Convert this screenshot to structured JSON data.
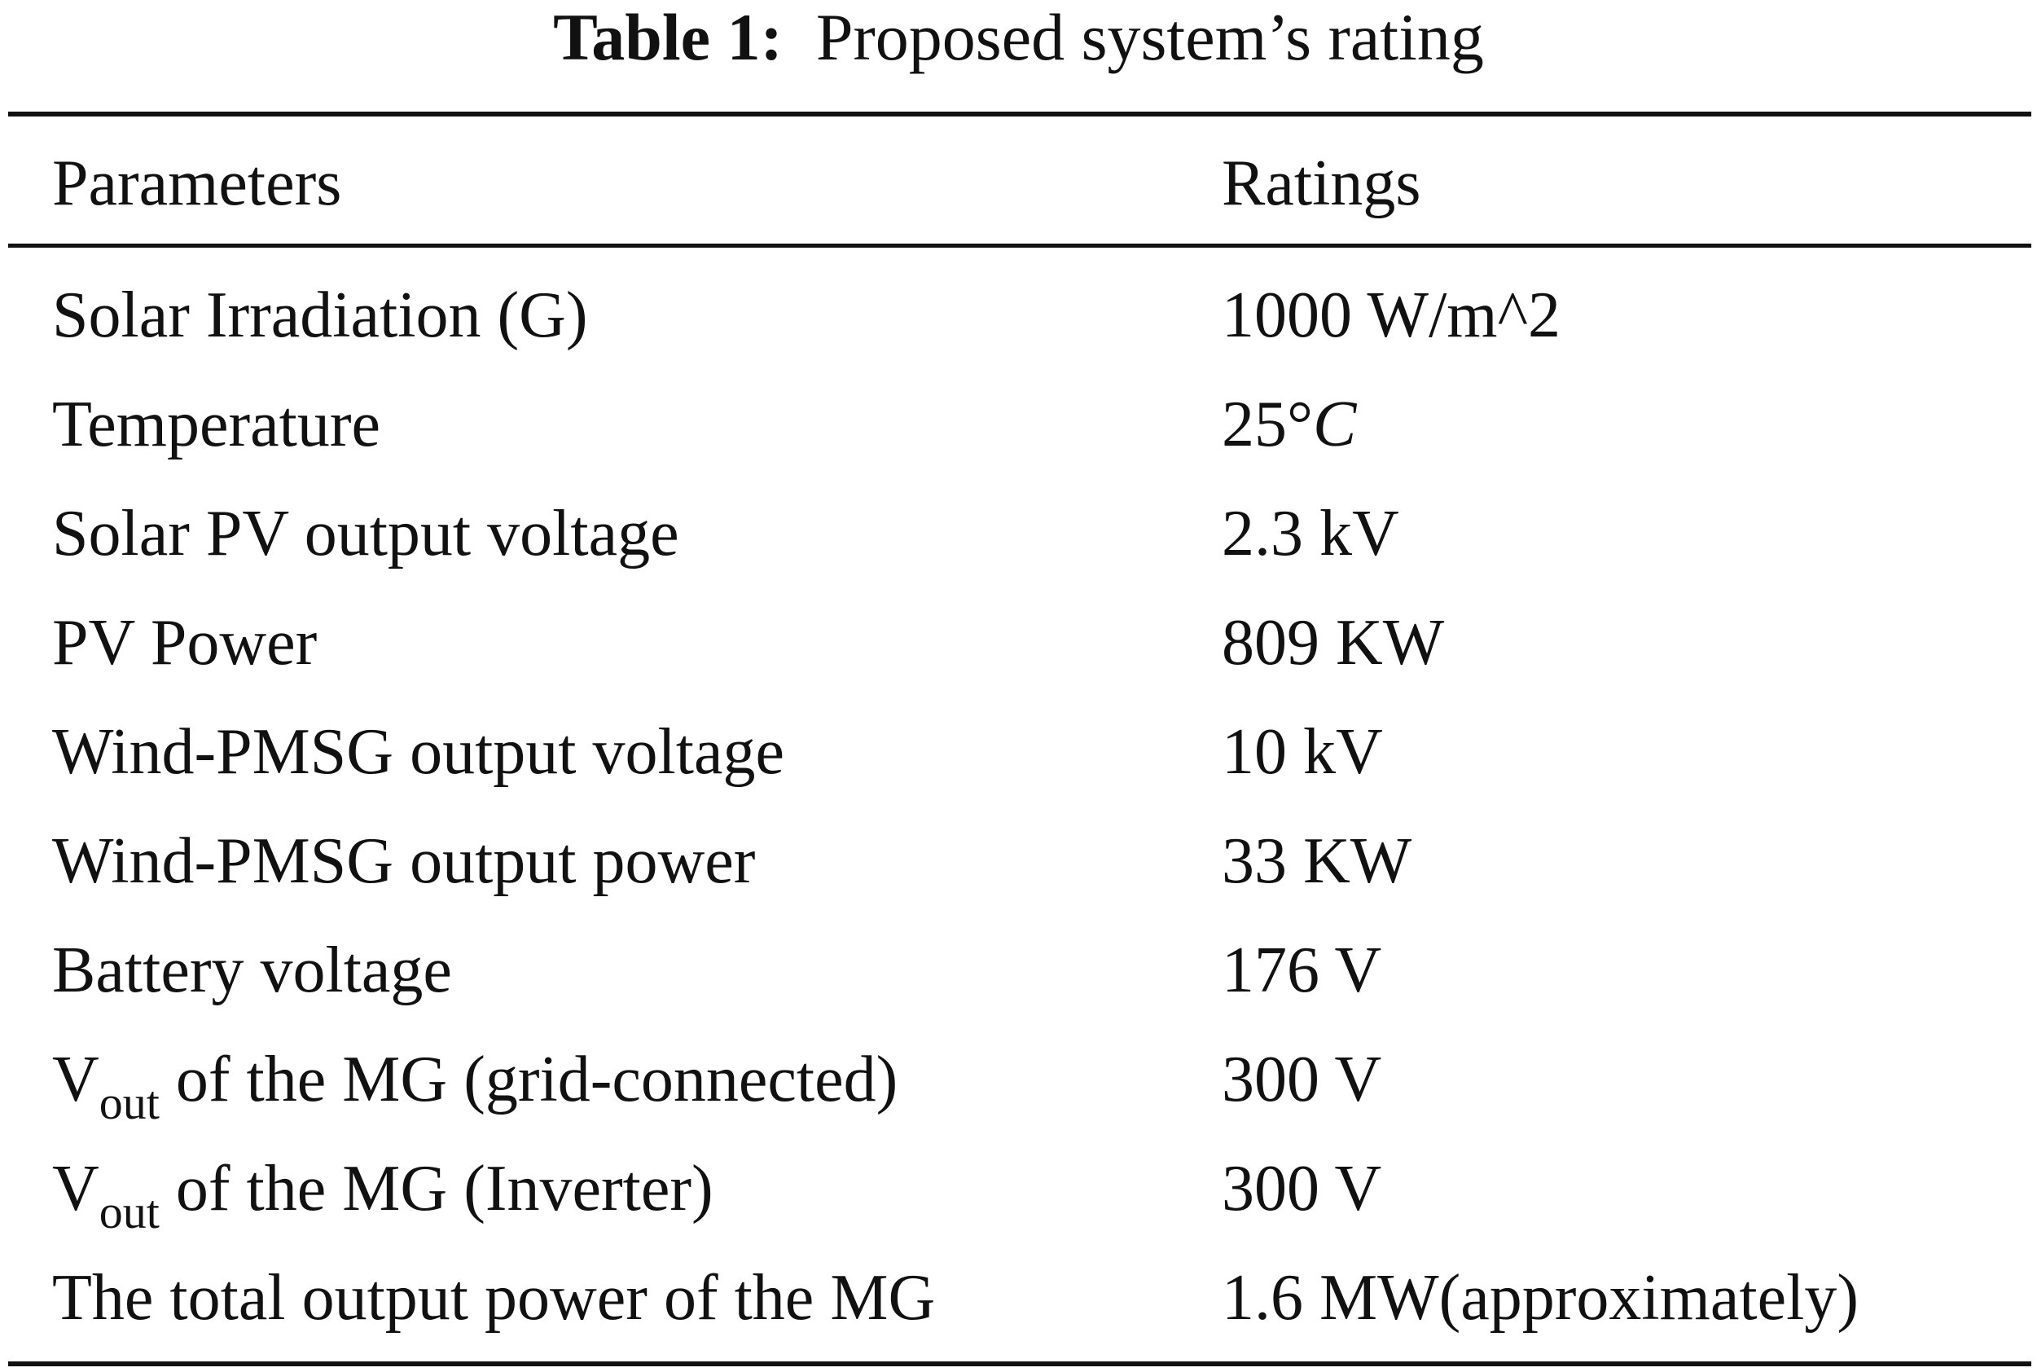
{
  "caption": {
    "label": "Table 1:",
    "title": "Proposed system’s rating"
  },
  "table": {
    "headers": {
      "parameters": "Parameters",
      "ratings": "Ratings"
    },
    "rows": [
      {
        "parameter": "Solar Irradiation (G)",
        "rating": "1000 W/m^2"
      },
      {
        "parameter": "Temperature",
        "rating_value": "25°",
        "rating_unit": "C"
      },
      {
        "parameter": "Solar PV output voltage",
        "rating": "2.3 kV"
      },
      {
        "parameter": "PV Power",
        "rating": "809 KW"
      },
      {
        "parameter": "Wind-PMSG output voltage",
        "rating": "10 kV"
      },
      {
        "parameter": "Wind-PMSG output power",
        "rating": "33 KW"
      },
      {
        "parameter": "Battery voltage",
        "rating": "176 V"
      },
      {
        "parameter_symbol": "V",
        "parameter_sub": "out",
        "parameter_rest": " of the MG (grid-connected)",
        "rating": "300 V"
      },
      {
        "parameter_symbol": "V",
        "parameter_sub": "out",
        "parameter_rest": " of the MG (Inverter)",
        "rating": "300 V"
      },
      {
        "parameter": "The total output power of the MG",
        "rating": "1.6 MW(approximately)"
      }
    ]
  }
}
